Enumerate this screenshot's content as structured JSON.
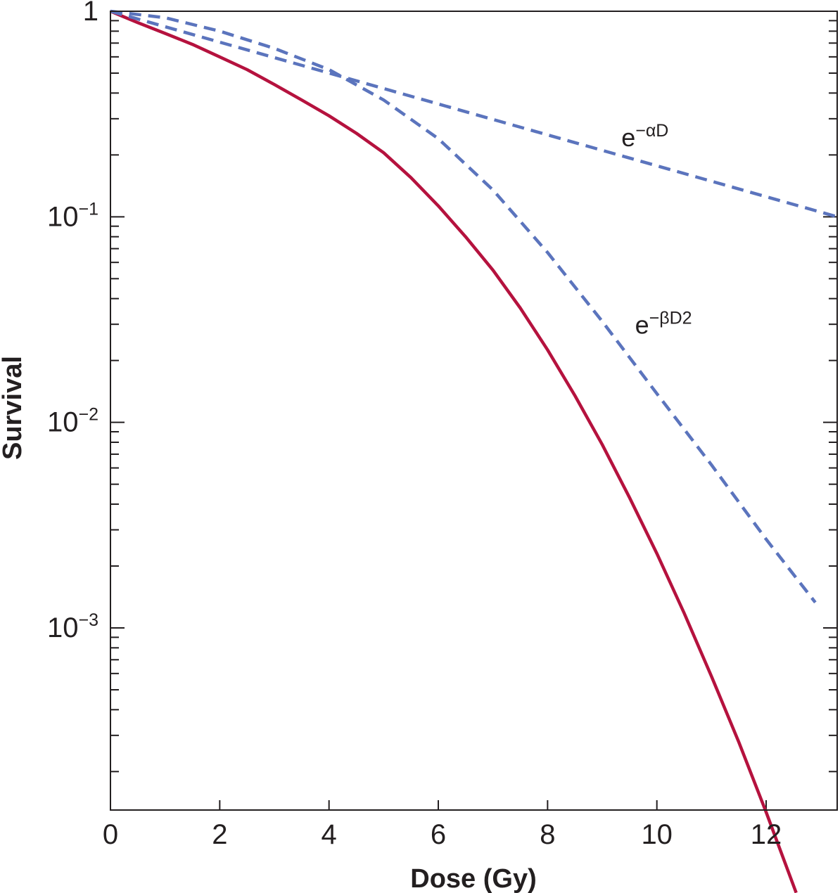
{
  "chart_data": {
    "type": "line",
    "xlabel": "Dose (Gy)",
    "ylabel": "Survival",
    "xlim": [
      0,
      13.3
    ],
    "ylim": [
      0.00013,
      1
    ],
    "yscale": "log",
    "grid": false,
    "x_ticks": [
      0,
      2,
      4,
      6,
      8,
      10,
      12
    ],
    "x_tick_labels": [
      "0",
      "2",
      "4",
      "6",
      "8",
      "10",
      "12"
    ],
    "y_tick_labels": [
      {
        "value": 1,
        "base": "1",
        "exp": ""
      },
      {
        "value": 0.1,
        "base": "10",
        "exp": "−1"
      },
      {
        "value": 0.01,
        "base": "10",
        "exp": "−2"
      },
      {
        "value": 0.001,
        "base": "10",
        "exp": "−3"
      }
    ],
    "series": [
      {
        "color": "#b5123e",
        "style": "solid",
        "x": [
          0,
          0.5,
          1,
          1.5,
          2,
          2.5,
          3,
          3.5,
          4,
          4.5,
          5,
          5.5,
          6,
          6.5,
          7,
          7.5,
          8,
          8.5,
          9,
          9.5,
          10,
          10.5,
          11,
          11.5,
          12,
          12.55
        ],
        "y": [
          1,
          0.88,
          0.78,
          0.69,
          0.6,
          0.52,
          0.44,
          0.37,
          0.31,
          0.255,
          0.205,
          0.155,
          0.113,
          0.08,
          0.055,
          0.036,
          0.0225,
          0.0135,
          0.0078,
          0.0043,
          0.0023,
          0.00118,
          0.00058,
          0.000278,
          0.000127,
          5.15e-05
        ]
      },
      {
        "color": "#5b74bd",
        "style": "dashed",
        "x": [
          0,
          13.3
        ],
        "y": [
          1,
          0.1
        ]
      },
      {
        "color": "#5b74bd",
        "style": "dashed",
        "x": [
          0,
          1,
          2,
          3,
          4,
          5,
          6,
          7,
          8,
          9,
          10,
          11,
          12,
          12.9
        ],
        "y": [
          1,
          0.93,
          0.8,
          0.66,
          0.52,
          0.37,
          0.24,
          0.135,
          0.067,
          0.031,
          0.0138,
          0.0062,
          0.0027,
          0.00133
        ]
      }
    ],
    "annotations": [
      {
        "base": "e",
        "exp": "−αD",
        "x": 9.35,
        "y": 0.22
      },
      {
        "base": "e",
        "exp": "−βD2",
        "x": 9.6,
        "y": 0.027
      }
    ]
  }
}
